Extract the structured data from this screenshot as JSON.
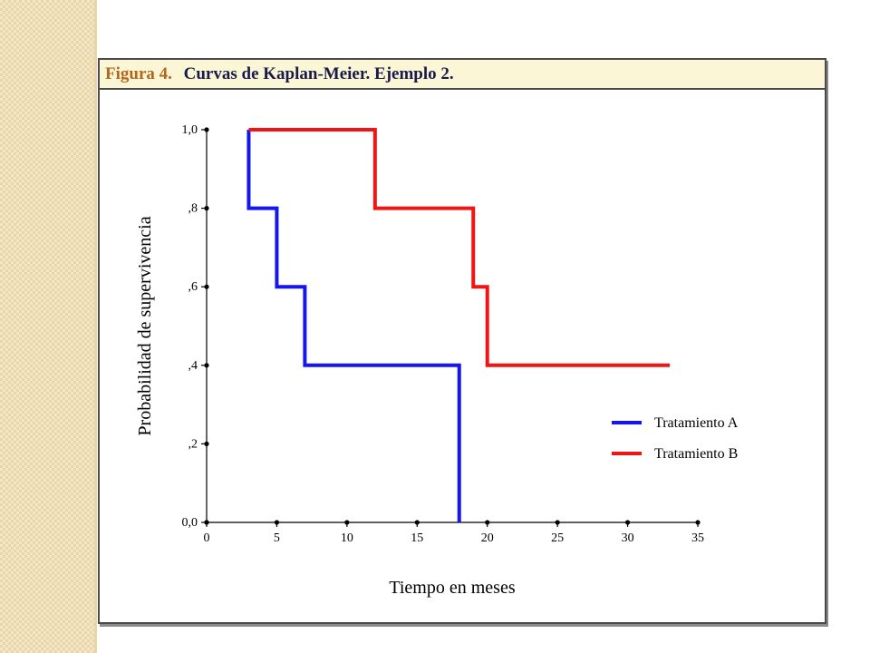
{
  "figure": {
    "caption_number": "Figura 4.",
    "caption_text": "Curvas de Kaplan-Meier.  Ejemplo 2."
  },
  "colors": {
    "accent_caption": "#b5651d",
    "header_bg": "#fbf7d6",
    "series_a": "#1515f0",
    "series_b": "#f01515"
  },
  "chart_data": {
    "type": "line",
    "step": true,
    "xlabel": "Tiempo en meses",
    "ylabel": "Probabilidad de supervivencia",
    "xlim": [
      0,
      35
    ],
    "ylim": [
      0,
      1
    ],
    "x_ticks": [
      0,
      5,
      10,
      15,
      20,
      25,
      30,
      35
    ],
    "x_tick_labels": [
      "0",
      "5",
      "10",
      "15",
      "20",
      "25",
      "30",
      "35"
    ],
    "y_ticks": [
      0,
      0.2,
      0.4,
      0.6,
      0.8,
      1.0
    ],
    "y_tick_labels": [
      "0,0",
      ",2",
      ",4",
      ",6",
      ",8",
      "1,0"
    ],
    "grid": false,
    "legend_position": "right",
    "series": [
      {
        "name": "Tratamiento A",
        "color": "#1515f0",
        "points": [
          [
            3,
            1.0
          ],
          [
            3,
            0.8
          ],
          [
            5,
            0.8
          ],
          [
            5,
            0.6
          ],
          [
            7,
            0.6
          ],
          [
            7,
            0.4
          ],
          [
            18,
            0.4
          ],
          [
            18,
            0.0
          ]
        ]
      },
      {
        "name": "Tratamiento B",
        "color": "#f01515",
        "points": [
          [
            3,
            1.0
          ],
          [
            12,
            1.0
          ],
          [
            12,
            0.8
          ],
          [
            19,
            0.8
          ],
          [
            19,
            0.6
          ],
          [
            20,
            0.6
          ],
          [
            20,
            0.4
          ],
          [
            33,
            0.4
          ]
        ]
      }
    ]
  }
}
